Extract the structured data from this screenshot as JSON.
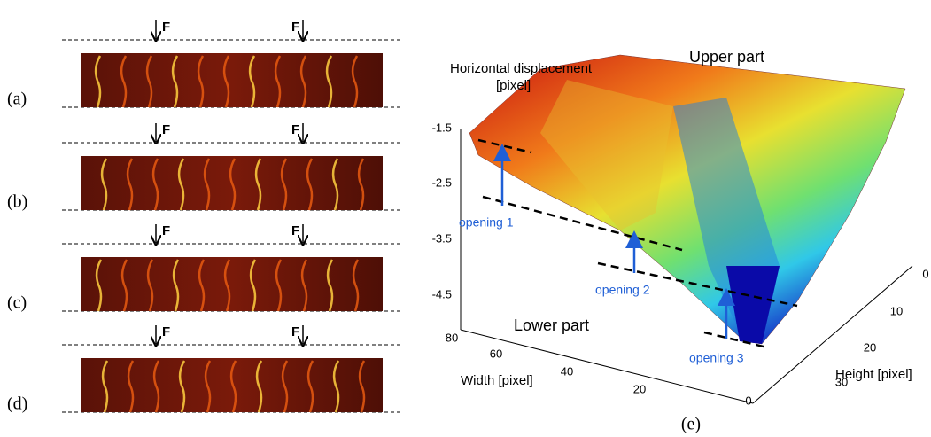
{
  "panels": [
    {
      "label": "(a)",
      "forces": [
        "F",
        "F"
      ]
    },
    {
      "label": "(b)",
      "forces": [
        "F",
        "F"
      ]
    },
    {
      "label": "(c)",
      "forces": [
        "F",
        "F"
      ]
    },
    {
      "label": "(d)",
      "forces": [
        "F",
        "F"
      ]
    }
  ],
  "surface": {
    "z_axis_label": [
      "Horizontal displacement",
      "[pixel]"
    ],
    "z_ticks": [
      -1.5,
      -2.5,
      -3.5,
      -4.5
    ],
    "width_label": "Width [pixel]",
    "width_ticks": [
      80,
      60,
      40,
      20,
      0
    ],
    "height_label": "Height [pixel]",
    "height_ticks": [
      0,
      10,
      20,
      30
    ],
    "upper": "Upper part",
    "lower": "Lower part",
    "openings": [
      "opening 1",
      "opening 2",
      "opening 3"
    ],
    "label": "(e)"
  }
}
